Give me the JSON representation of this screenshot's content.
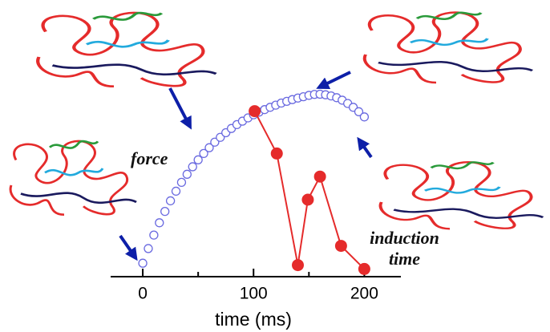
{
  "chart_data": {
    "type": "scatter-line",
    "x_label": "time (ms)",
    "xlim": [
      -29,
      233
    ],
    "xticks": [
      0,
      100,
      200
    ],
    "minor_xticks": [
      50,
      150
    ],
    "ylim": [
      0,
      100
    ],
    "series": [
      {
        "name": "force",
        "color": "#6a6ae0",
        "marker": "open-circle",
        "line": false,
        "x": [
          0,
          5,
          10,
          15,
          20,
          25,
          30,
          35,
          40,
          45,
          50,
          55,
          60,
          65,
          70,
          75,
          80,
          85,
          90,
          95,
          100,
          105,
          110,
          115,
          120,
          125,
          130,
          135,
          140,
          145,
          150,
          155,
          160,
          165,
          170,
          175,
          180,
          185,
          190,
          195,
          200
        ],
        "values": [
          7,
          14.6,
          21.6,
          28.0,
          33.9,
          39.4,
          44.4,
          49.0,
          53.2,
          57.1,
          60.7,
          64.0,
          67.0,
          69.9,
          72.4,
          74.8,
          77.0,
          79.0,
          80.8,
          82.5,
          84.1,
          85.5,
          86.8,
          88.0,
          89.1,
          90.2,
          91.1,
          92.0,
          92.8,
          93.5,
          94.2,
          94.7,
          94.8,
          94.5,
          93.9,
          93.0,
          91.7,
          90.0,
          88.0,
          85.7,
          83.0
        ]
      },
      {
        "name": "induction time",
        "color": "#e52b2b",
        "marker": "filled-circle",
        "line": true,
        "x": [
          101,
          121,
          140,
          149,
          160,
          179,
          200
        ],
        "values": [
          86,
          64,
          6,
          40,
          52,
          16,
          4
        ]
      }
    ]
  }
}
